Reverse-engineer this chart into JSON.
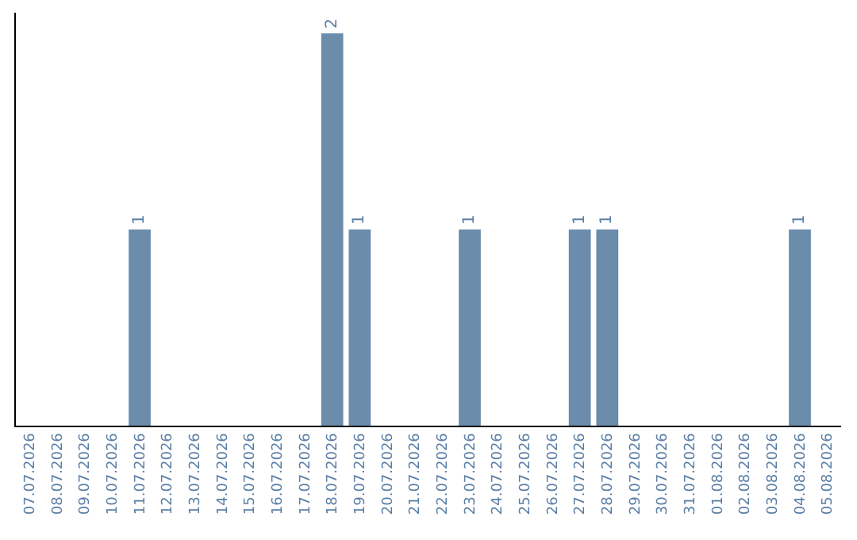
{
  "chart_data": {
    "type": "bar",
    "categories": [
      "07.07.2026",
      "08.07.2026",
      "09.07.2026",
      "10.07.2026",
      "11.07.2026",
      "12.07.2026",
      "13.07.2026",
      "14.07.2026",
      "15.07.2026",
      "16.07.2026",
      "17.07.2026",
      "18.07.2026",
      "19.07.2026",
      "20.07.2026",
      "21.07.2026",
      "22.07.2026",
      "23.07.2026",
      "24.07.2026",
      "25.07.2026",
      "26.07.2026",
      "27.07.2026",
      "28.07.2026",
      "29.07.2026",
      "30.07.2026",
      "31.07.2026",
      "01.08.2026",
      "02.08.2026",
      "03.08.2026",
      "04.08.2026",
      "05.08.2026"
    ],
    "values": [
      0,
      0,
      0,
      0,
      1,
      0,
      0,
      0,
      0,
      0,
      0,
      2,
      1,
      0,
      0,
      0,
      1,
      0,
      0,
      0,
      1,
      1,
      0,
      0,
      0,
      0,
      0,
      0,
      1,
      0
    ],
    "value_labels": [
      null,
      null,
      null,
      null,
      "1",
      null,
      null,
      null,
      null,
      null,
      null,
      "2",
      "1",
      null,
      null,
      null,
      "1",
      null,
      null,
      null,
      "1",
      "1",
      null,
      null,
      null,
      null,
      null,
      null,
      "1",
      null
    ],
    "color": "#6b8cab",
    "tick_labels": "x",
    "legend": false
  }
}
